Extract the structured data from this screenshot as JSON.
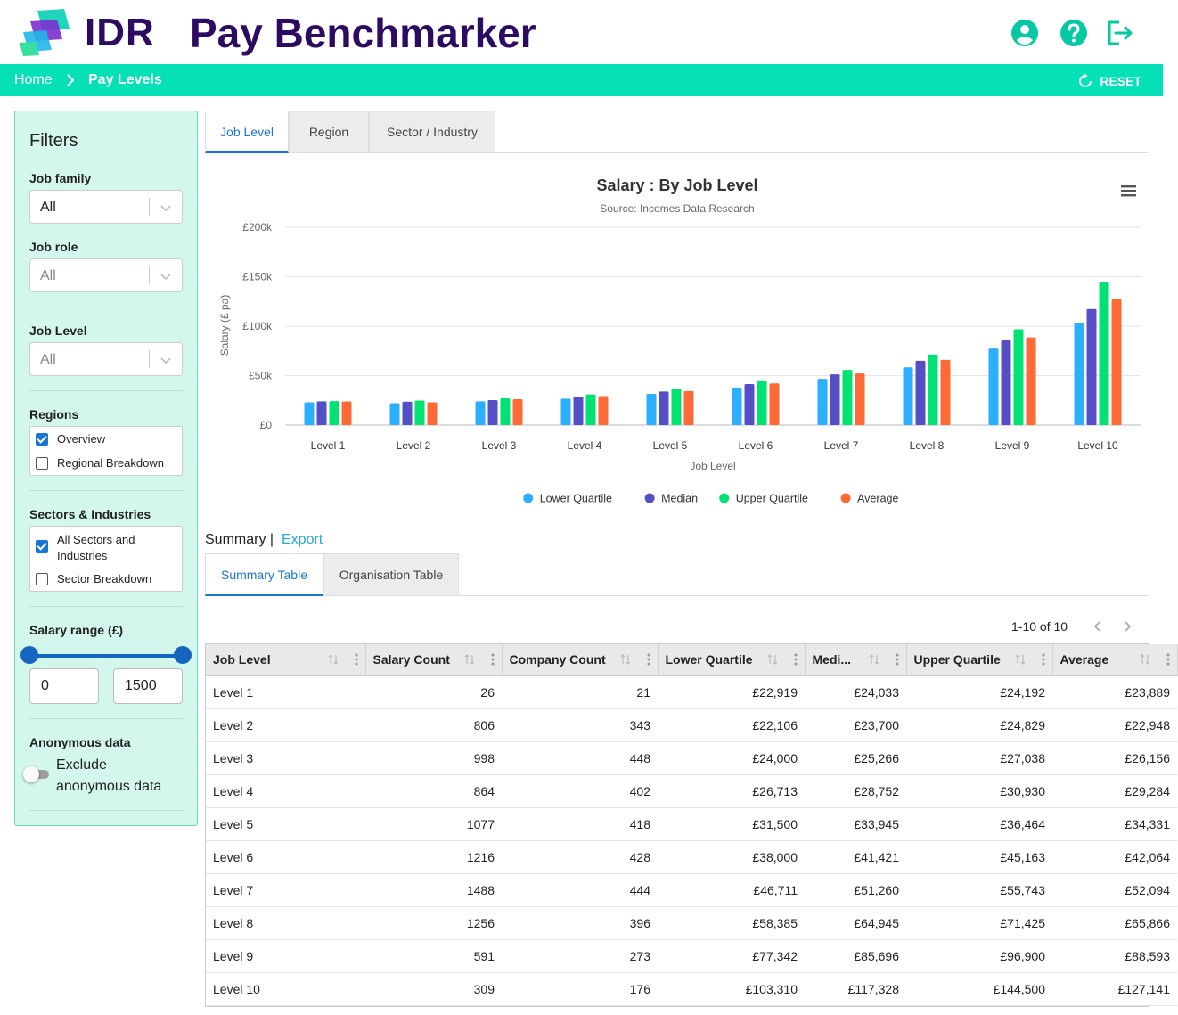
{
  "header": {
    "brand": "IDR",
    "title": "Pay Benchmarker"
  },
  "breadcrumb": {
    "home": "Home",
    "current": "Pay Levels",
    "reset": "RESET"
  },
  "filters": {
    "title": "Filters",
    "job_family": {
      "label": "Job family",
      "value": "All"
    },
    "job_role": {
      "label": "Job role",
      "value": "All"
    },
    "job_level": {
      "label": "Job Level",
      "value": "All"
    },
    "regions": {
      "label": "Regions",
      "options": [
        {
          "label": "Overview",
          "checked": true
        },
        {
          "label": "Regional Breakdown",
          "checked": false
        }
      ]
    },
    "sectors": {
      "label": "Sectors & Industries",
      "options": [
        {
          "label": "All Sectors and Industries",
          "checked": true
        },
        {
          "label": "Sector Breakdown",
          "checked": false
        }
      ]
    },
    "salary_range": {
      "label": "Salary range (£)",
      "min": "0",
      "max": "1500"
    },
    "anonymous": {
      "label": "Anonymous data",
      "toggle_label": "Exclude anonymous data",
      "on": false
    }
  },
  "chart_tabs": [
    "Job Level",
    "Region",
    "Sector / Industry"
  ],
  "chart_data": {
    "type": "bar",
    "title": "Salary : By Job Level",
    "subtitle": "Source: Incomes Data Research",
    "xlabel": "Job Level",
    "ylabel": "Salary (£ pa)",
    "ylim": [
      0,
      200000
    ],
    "yticks": [
      "£0",
      "£50k",
      "£100k",
      "£150k",
      "£200k"
    ],
    "legend_position": "bottom-center",
    "categories": [
      "Level 1",
      "Level 2",
      "Level 3",
      "Level 4",
      "Level 5",
      "Level 6",
      "Level 7",
      "Level 8",
      "Level 9",
      "Level 10"
    ],
    "series": [
      {
        "name": "Lower Quartile",
        "color": "#2caffe",
        "values": [
          22919,
          22106,
          24000,
          26713,
          31500,
          38000,
          46711,
          58385,
          77342,
          103310
        ]
      },
      {
        "name": "Median",
        "color": "#544fc5",
        "values": [
          24033,
          23700,
          25266,
          28752,
          33945,
          41421,
          51260,
          64945,
          85696,
          117328
        ]
      },
      {
        "name": "Upper Quartile",
        "color": "#00e272",
        "values": [
          24192,
          24829,
          27038,
          30930,
          36464,
          45163,
          55743,
          71425,
          96900,
          144500
        ]
      },
      {
        "name": "Average",
        "color": "#fe6a35",
        "values": [
          23889,
          22948,
          26156,
          29284,
          34331,
          42064,
          52094,
          65866,
          88593,
          127141
        ]
      }
    ]
  },
  "summary": {
    "label": "Summary |",
    "export": "Export"
  },
  "table_tabs": [
    "Summary Table",
    "Organisation Table"
  ],
  "pager": {
    "text": "1-10 of 10"
  },
  "table": {
    "columns": [
      "Job Level",
      "Salary Count",
      "Company Count",
      "Lower Quartile",
      "Medi...",
      "Upper Quartile",
      "Average"
    ],
    "rows": [
      [
        "Level 1",
        "26",
        "21",
        "£22,919",
        "£24,033",
        "£24,192",
        "£23,889"
      ],
      [
        "Level 2",
        "806",
        "343",
        "£22,106",
        "£23,700",
        "£24,829",
        "£22,948"
      ],
      [
        "Level 3",
        "998",
        "448",
        "£24,000",
        "£25,266",
        "£27,038",
        "£26,156"
      ],
      [
        "Level 4",
        "864",
        "402",
        "£26,713",
        "£28,752",
        "£30,930",
        "£29,284"
      ],
      [
        "Level 5",
        "1077",
        "418",
        "£31,500",
        "£33,945",
        "£36,464",
        "£34,331"
      ],
      [
        "Level 6",
        "1216",
        "428",
        "£38,000",
        "£41,421",
        "£45,163",
        "£42,064"
      ],
      [
        "Level 7",
        "1488",
        "444",
        "£46,711",
        "£51,260",
        "£55,743",
        "£52,094"
      ],
      [
        "Level 8",
        "1256",
        "396",
        "£58,385",
        "£64,945",
        "£71,425",
        "£65,866"
      ],
      [
        "Level 9",
        "591",
        "273",
        "£77,342",
        "£85,696",
        "£96,900",
        "£88,593"
      ],
      [
        "Level 10",
        "309",
        "176",
        "£103,310",
        "£117,328",
        "£144,500",
        "£127,141"
      ]
    ]
  },
  "colors": {
    "brand_dark": "#2d0b63",
    "accent_teal": "#06e0b7",
    "sidebar_bg": "#d4f7ed",
    "link_blue": "#1976d2"
  }
}
